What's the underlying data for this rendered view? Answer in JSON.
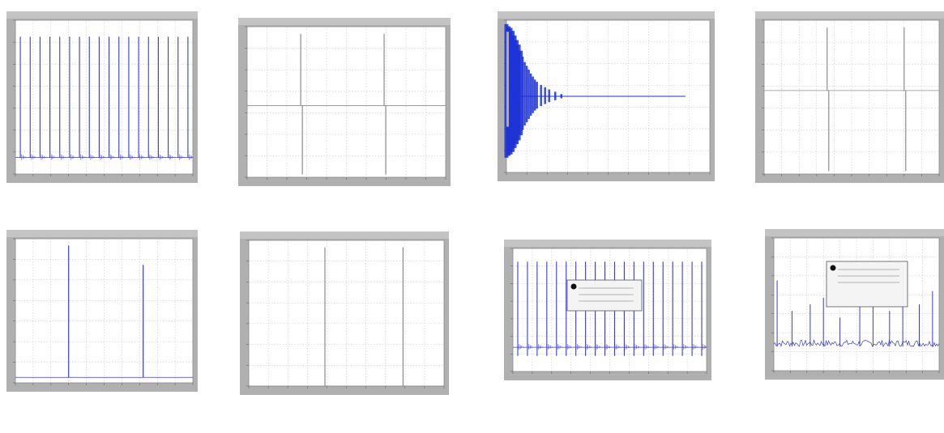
{
  "colors": {
    "background": "#ffffff",
    "frame": "#b0b0b0",
    "title_bar": "#c4c4c4",
    "plot_area": "#ffffff",
    "grid": "#bfbfbf",
    "trace_blue": "#3a3ad0",
    "trace_gray": "#8c8c8c",
    "trace_dark_blue": "#1a2fd6"
  },
  "panels": [
    {
      "caption": "",
      "chart_data": {
        "type": "line",
        "title": "",
        "signal": "impulse-train",
        "x": [
          0,
          1,
          2,
          3,
          4,
          5,
          6,
          7,
          8,
          9,
          10,
          11,
          12,
          13,
          14,
          15,
          16,
          17
        ],
        "y": [
          1,
          1,
          1,
          1,
          1,
          1,
          1,
          1,
          1,
          1,
          1,
          1,
          1,
          1,
          1,
          1,
          1,
          1
        ],
        "baseline": 0.12,
        "undershoot": 0.0,
        "xlim": [
          -0.5,
          17.5
        ],
        "ylim": [
          0,
          1.12
        ],
        "color": "trace_blue"
      }
    },
    {
      "caption": "",
      "chart_data": {
        "type": "line",
        "title": "",
        "signal": "bipolar-spikes",
        "x": [
          0.27,
          0.69
        ],
        "y": [
          1,
          1
        ],
        "baseline": 0.5,
        "undershoot": 0.02,
        "xlim": [
          0,
          1
        ],
        "ylim": [
          0,
          1.05
        ],
        "color": "trace_gray"
      }
    },
    {
      "caption": "",
      "chart_data": {
        "type": "line",
        "title": "",
        "signal": "decaying-oscillation",
        "x": [
          0.0,
          0.01,
          0.02,
          0.03,
          0.04,
          0.05,
          0.06,
          0.07,
          0.08,
          0.09,
          0.1,
          0.11,
          0.12,
          0.13,
          0.14,
          0.15,
          0.17,
          0.19,
          0.21,
          0.24,
          0.27
        ],
        "y": [
          0.95,
          0.92,
          0.9,
          0.86,
          0.8,
          0.74,
          0.68,
          0.6,
          0.52,
          0.45,
          0.4,
          0.35,
          0.3,
          0.26,
          0.22,
          0.19,
          0.15,
          0.12,
          0.09,
          0.06,
          0.03
        ],
        "baseline": 0.0,
        "undershoot": 0.0,
        "xlim": [
          0,
          1
        ],
        "ylim": [
          -1,
          1
        ],
        "color": "trace_dark_blue"
      }
    },
    {
      "caption": "",
      "chart_data": {
        "type": "line",
        "title": "",
        "signal": "bipolar-spikes",
        "x": [
          0.36,
          0.8
        ],
        "y": [
          1,
          1
        ],
        "baseline": 0.57,
        "undershoot": 0.02,
        "xlim": [
          0,
          1
        ],
        "ylim": [
          0,
          1.05
        ],
        "color": "trace_gray"
      }
    },
    {
      "caption": "",
      "chart_data": {
        "type": "line",
        "title": "",
        "signal": "unipolar-spikes",
        "x": [
          0.3,
          0.72
        ],
        "y": [
          1,
          0.86
        ],
        "baseline": 0.04,
        "undershoot": 0.0,
        "xlim": [
          0,
          1
        ],
        "ylim": [
          0,
          1.05
        ],
        "color": "trace_blue"
      }
    },
    {
      "caption": "",
      "chart_data": {
        "type": "line",
        "title": "",
        "signal": "unipolar-spikes",
        "x": [
          0.39,
          0.79
        ],
        "y": [
          1,
          1
        ],
        "baseline": 0.0,
        "undershoot": 0.0,
        "xlim": [
          0,
          1
        ],
        "ylim": [
          0,
          1.05
        ],
        "color": "trace_gray"
      }
    },
    {
      "caption": "",
      "chart_data": {
        "type": "line",
        "title": "",
        "signal": "impulse-train",
        "x": [
          0,
          1,
          2,
          3,
          4,
          5,
          6,
          7,
          8,
          9,
          10,
          11,
          12,
          13,
          14,
          15,
          16,
          17,
          18,
          19
        ],
        "y": [
          1,
          1,
          1,
          1,
          1,
          1,
          1,
          1,
          1,
          1,
          1,
          1,
          1,
          1,
          1,
          1,
          1,
          1,
          1,
          1
        ],
        "baseline": 0.22,
        "undershoot": 0.07,
        "xlim": [
          -0.5,
          19.5
        ],
        "ylim": [
          0,
          1.12
        ],
        "color": "trace_blue"
      }
    },
    {
      "caption": "",
      "chart_data": {
        "type": "line",
        "title": "",
        "signal": "spiky-noise",
        "x": [
          0.02,
          0.11,
          0.22,
          0.3,
          0.4,
          0.52,
          0.6,
          0.7,
          0.78,
          0.88,
          0.96
        ],
        "y": [
          0.68,
          0.45,
          0.5,
          0.55,
          0.4,
          0.52,
          0.5,
          0.45,
          0.55,
          0.5,
          0.6
        ],
        "baseline": 0.2,
        "undershoot": 0.0,
        "xlim": [
          0,
          1
        ],
        "ylim": [
          0,
          1
        ],
        "color": "trace_blue"
      }
    }
  ]
}
